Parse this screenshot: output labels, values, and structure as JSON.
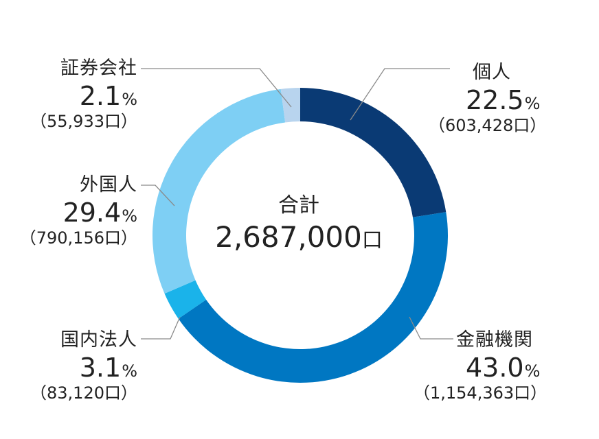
{
  "chart_data": {
    "type": "pie",
    "center_title": "合計",
    "center_value": "2,687,000",
    "center_unit": "口",
    "slices": [
      {
        "name": "個人",
        "percent": 22.5,
        "percent_text": "22.5",
        "count_text": "（603,428口）",
        "color": "#0a3a74"
      },
      {
        "name": "金融機関",
        "percent": 43.0,
        "percent_text": "43.0",
        "count_text": "（1,154,363口）",
        "color": "#0077c2"
      },
      {
        "name": "国内法人",
        "percent": 3.1,
        "percent_text": "3.1",
        "count_text": "（83,120口）",
        "color": "#1ab3ea"
      },
      {
        "name": "外国人",
        "percent": 29.4,
        "percent_text": "29.4",
        "count_text": "（790,156口）",
        "color": "#7ecff4"
      },
      {
        "name": "証券会社",
        "percent": 2.1,
        "percent_text": "2.1",
        "count_text": "（55,933口）",
        "color": "#b8d4ee"
      }
    ],
    "percent_symbol": "%"
  }
}
